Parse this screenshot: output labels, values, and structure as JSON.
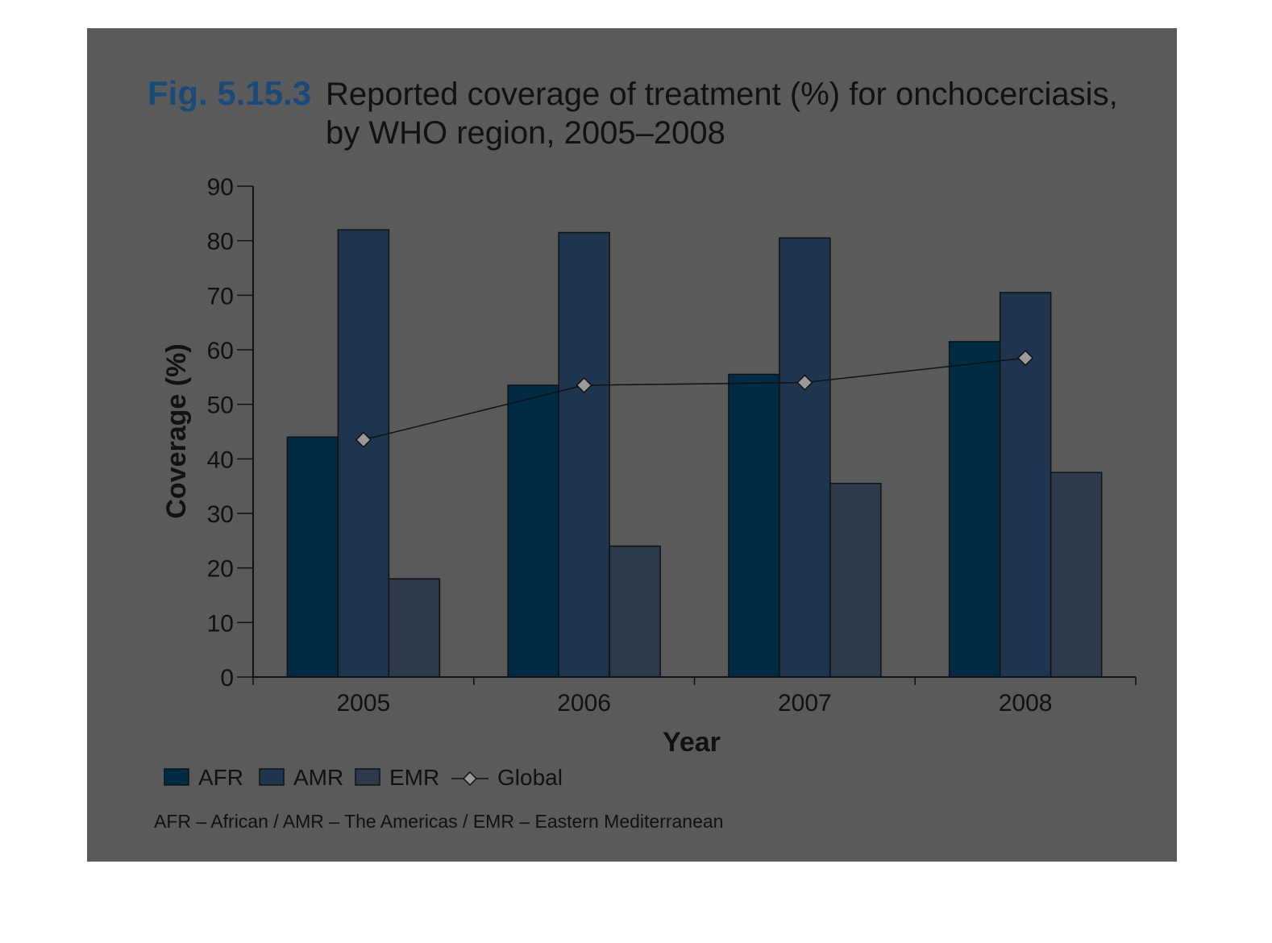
{
  "figure": {
    "label": "Fig. 5.15.3",
    "title_line1": "Reported coverage of treatment (%) for onchocerciasis,",
    "title_line2": "by WHO region, 2005–2008",
    "note": "AFR – African / AMR – The Americas / EMR – Eastern Mediterranean"
  },
  "colors": {
    "background": "#5a5a5a",
    "AFR": "#002b45",
    "AMR": "#1f344f",
    "EMR": "#2d3a4c",
    "global_marker": "#9a9a9a",
    "line": "#111111"
  },
  "chart_data": {
    "type": "bar",
    "categories": [
      "2005",
      "2006",
      "2007",
      "2008"
    ],
    "series": [
      {
        "name": "AFR",
        "values": [
          44,
          53.5,
          55.5,
          61.5
        ]
      },
      {
        "name": "AMR",
        "values": [
          82,
          81.5,
          80.5,
          70.5
        ]
      },
      {
        "name": "EMR",
        "values": [
          18,
          24,
          35.5,
          37.5
        ]
      }
    ],
    "line_series": {
      "name": "Global",
      "values": [
        43.5,
        53.5,
        54,
        58.5
      ]
    },
    "xlabel": "Year",
    "ylabel": "Coverage (%)",
    "ylim": [
      0,
      90
    ],
    "yticks": [
      0,
      10,
      20,
      30,
      40,
      50,
      60,
      70,
      80,
      90
    ],
    "legend_position": "bottom-left",
    "grid": false
  }
}
